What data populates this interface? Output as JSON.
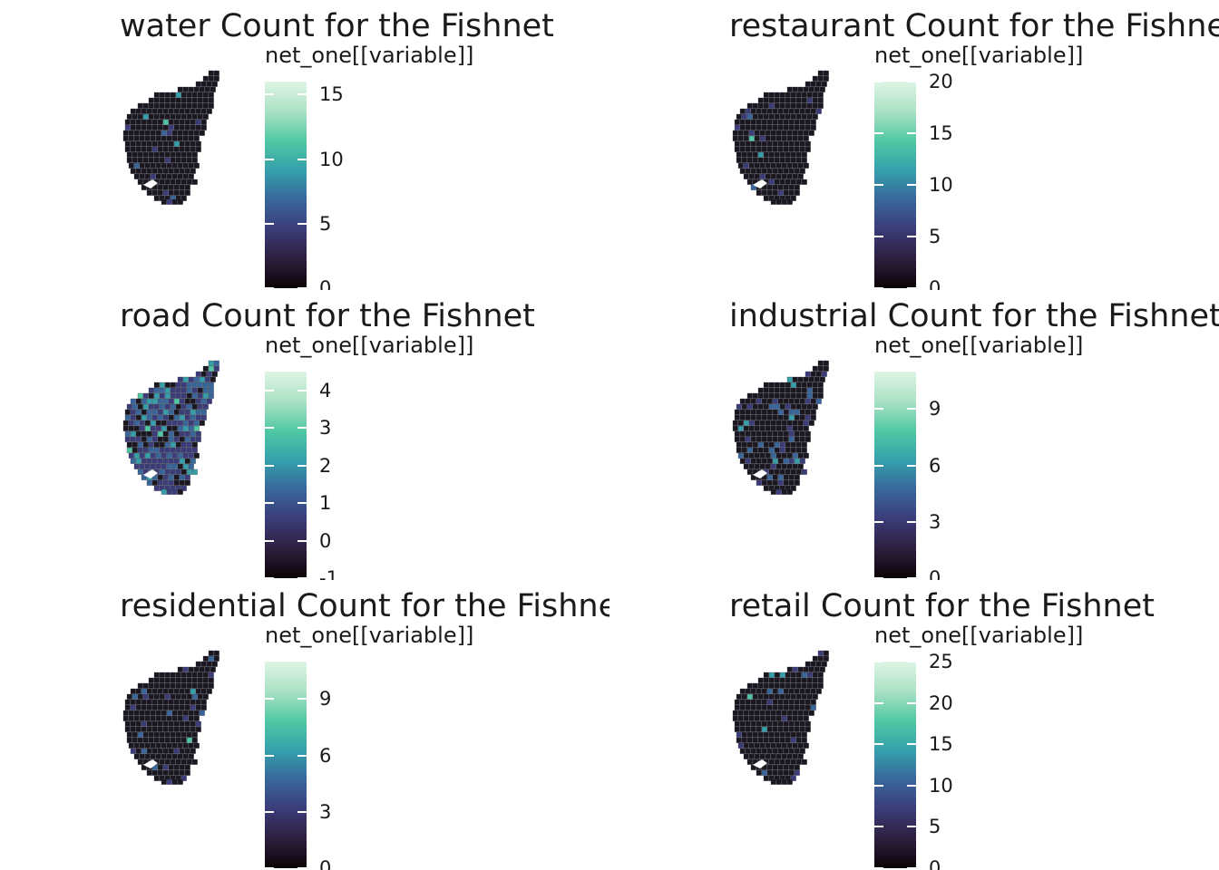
{
  "panels": [
    {
      "title": "water Count for the Fishnet",
      "legend_title": "net_one[[variable]]",
      "ticks": [
        "0",
        "5",
        "10",
        "15"
      ]
    },
    {
      "title": "restaurant Count for the Fishnet",
      "legend_title": "net_one[[variable]]",
      "ticks": [
        "0",
        "5",
        "10",
        "15",
        "20"
      ]
    },
    {
      "title": "road Count for the Fishnet",
      "legend_title": "net_one[[variable]]",
      "ticks": [
        "-1",
        "0",
        "1",
        "2",
        "3",
        "4"
      ]
    },
    {
      "title": "industrial Count for the Fishnet",
      "legend_title": "net_one[[variable]]",
      "ticks": [
        "0",
        "3",
        "6",
        "9"
      ]
    },
    {
      "title": "residential Count for the Fishnet",
      "legend_title": "net_one[[variable]]",
      "ticks": [
        "0",
        "3",
        "6",
        "9"
      ]
    },
    {
      "title": "retail Count for the Fishnet",
      "legend_title": "net_one[[variable]]",
      "ticks": [
        "0",
        "5",
        "10",
        "15",
        "20",
        "25"
      ]
    }
  ],
  "chart_data": [
    {
      "type": "heatmap",
      "title": "water Count for the Fishnet",
      "legend_title": "net_one[[variable]]",
      "legend_range": [
        0,
        16
      ],
      "legend_ticks": [
        0,
        5,
        10,
        15
      ]
    },
    {
      "type": "heatmap",
      "title": "restaurant Count for the Fishnet",
      "legend_title": "net_one[[variable]]",
      "legend_range": [
        0,
        20
      ],
      "legend_ticks": [
        0,
        5,
        10,
        15,
        20
      ]
    },
    {
      "type": "heatmap",
      "title": "road Count for the Fishnet",
      "legend_title": "net_one[[variable]]",
      "legend_range": [
        -1,
        4.5
      ],
      "legend_ticks": [
        -1,
        0,
        1,
        2,
        3,
        4
      ]
    },
    {
      "type": "heatmap",
      "title": "industrial Count for the Fishnet",
      "legend_title": "net_one[[variable]]",
      "legend_range": [
        0,
        11
      ],
      "legend_ticks": [
        0,
        3,
        6,
        9
      ]
    },
    {
      "type": "heatmap",
      "title": "residential Count for the Fishnet",
      "legend_title": "net_one[[variable]]",
      "legend_range": [
        0,
        11
      ],
      "legend_ticks": [
        0,
        3,
        6,
        9
      ]
    },
    {
      "type": "heatmap",
      "title": "retail Count for the Fishnet",
      "legend_title": "net_one[[variable]]",
      "legend_range": [
        0,
        25
      ],
      "legend_ticks": [
        0,
        5,
        10,
        15,
        20,
        25
      ]
    }
  ],
  "colors": {
    "scale": [
      "#0b0405",
      "#2d1e3e",
      "#3b3d7a",
      "#38679c",
      "#35a0ab",
      "#4fc8a3",
      "#ade2c6",
      "#def5e5"
    ],
    "background": "#ffffff",
    "low_fill": "#1a1720"
  }
}
